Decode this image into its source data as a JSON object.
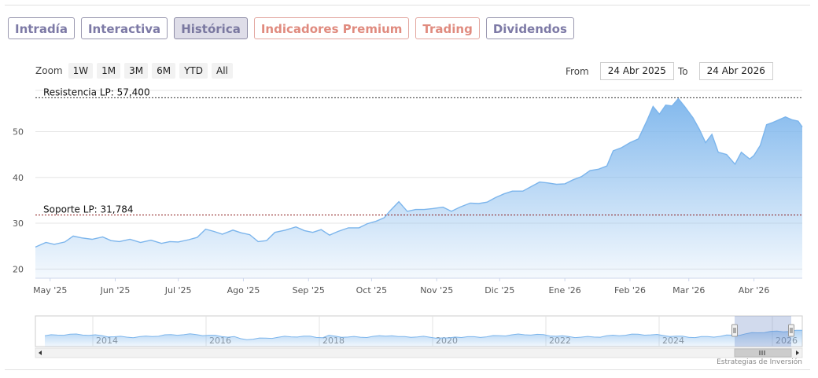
{
  "tabs": [
    {
      "label": "Intradía",
      "style": "normal"
    },
    {
      "label": "Interactiva",
      "style": "normal"
    },
    {
      "label": "Histórica",
      "style": "active"
    },
    {
      "label": "Indicadores Premium",
      "style": "premium"
    },
    {
      "label": "Trading",
      "style": "premium"
    },
    {
      "label": "Dividendos",
      "style": "normal"
    }
  ],
  "zoom": {
    "label": "Zoom",
    "buttons": [
      "1W",
      "1M",
      "3M",
      "6M",
      "YTD",
      "All"
    ]
  },
  "range": {
    "from_label": "From",
    "from_value": "24 Abr 2025",
    "to_label": "To",
    "to_value": "24 Abr 2026"
  },
  "credit": "Estrategias de Inversión",
  "colors": {
    "line": "#7cb5ec",
    "fill_top": "#7cb5ec",
    "level_line": "#8b1a1a",
    "accent": "#7d7aa6",
    "premium": "#e08b7f"
  },
  "chart_data": {
    "type": "area",
    "ylim": [
      18,
      59
    ],
    "yticks": [
      20,
      30,
      40,
      50
    ],
    "xlim": [
      "2025-04-24",
      "2026-04-24"
    ],
    "xticks": [
      {
        "label": "May '25",
        "date": "2025-05-01"
      },
      {
        "label": "Jun '25",
        "date": "2025-06-01"
      },
      {
        "label": "Jul '25",
        "date": "2025-07-01"
      },
      {
        "label": "Ago '25",
        "date": "2025-08-01"
      },
      {
        "label": "Sep '25",
        "date": "2025-09-01"
      },
      {
        "label": "Oct '25",
        "date": "2025-10-01"
      },
      {
        "label": "Nov '25",
        "date": "2025-11-01"
      },
      {
        "label": "Dic '25",
        "date": "2025-12-01"
      },
      {
        "label": "Ene '26",
        "date": "2026-01-01"
      },
      {
        "label": "Feb '26",
        "date": "2026-02-01"
      },
      {
        "label": "Mar '26",
        "date": "2026-03-01"
      },
      {
        "label": "Abr '26",
        "date": "2026-04-01"
      }
    ],
    "levels": [
      {
        "label": "Resistencia LP: 57,400",
        "value": 57.4
      },
      {
        "label": "Soporte LP: 31,784",
        "value": 31.784
      }
    ],
    "series": [
      {
        "points": [
          [
            "2025-04-24",
            24.8
          ],
          [
            "2025-04-29",
            25.8
          ],
          [
            "2025-05-03",
            25.4
          ],
          [
            "2025-05-08",
            25.9
          ],
          [
            "2025-05-12",
            27.2
          ],
          [
            "2025-05-16",
            26.8
          ],
          [
            "2025-05-21",
            26.5
          ],
          [
            "2025-05-26",
            27.0
          ],
          [
            "2025-05-30",
            26.2
          ],
          [
            "2025-06-03",
            26.0
          ],
          [
            "2025-06-08",
            26.5
          ],
          [
            "2025-06-13",
            25.8
          ],
          [
            "2025-06-18",
            26.3
          ],
          [
            "2025-06-23",
            25.6
          ],
          [
            "2025-06-27",
            26.0
          ],
          [
            "2025-07-01",
            25.9
          ],
          [
            "2025-07-06",
            26.4
          ],
          [
            "2025-07-10",
            26.9
          ],
          [
            "2025-07-14",
            28.7
          ],
          [
            "2025-07-18",
            28.2
          ],
          [
            "2025-07-22",
            27.6
          ],
          [
            "2025-07-27",
            28.5
          ],
          [
            "2025-07-31",
            27.9
          ],
          [
            "2025-08-04",
            27.5
          ],
          [
            "2025-08-08",
            26.0
          ],
          [
            "2025-08-12",
            26.2
          ],
          [
            "2025-08-16",
            28.0
          ],
          [
            "2025-08-21",
            28.5
          ],
          [
            "2025-08-26",
            29.2
          ],
          [
            "2025-08-30",
            28.4
          ],
          [
            "2025-09-03",
            28.0
          ],
          [
            "2025-09-07",
            28.6
          ],
          [
            "2025-09-11",
            27.4
          ],
          [
            "2025-09-15",
            28.2
          ],
          [
            "2025-09-20",
            29.0
          ],
          [
            "2025-09-25",
            29.0
          ],
          [
            "2025-09-29",
            29.9
          ],
          [
            "2025-10-03",
            30.4
          ],
          [
            "2025-10-07",
            31.2
          ],
          [
            "2025-10-10",
            32.8
          ],
          [
            "2025-10-14",
            34.7
          ],
          [
            "2025-10-18",
            32.6
          ],
          [
            "2025-10-22",
            33.0
          ],
          [
            "2025-10-26",
            33.0
          ],
          [
            "2025-10-30",
            33.2
          ],
          [
            "2025-11-04",
            33.5
          ],
          [
            "2025-11-08",
            32.6
          ],
          [
            "2025-11-12",
            33.5
          ],
          [
            "2025-11-17",
            34.4
          ],
          [
            "2025-11-21",
            34.3
          ],
          [
            "2025-11-25",
            34.6
          ],
          [
            "2025-11-29",
            35.6
          ],
          [
            "2025-12-03",
            36.4
          ],
          [
            "2025-12-07",
            37.0
          ],
          [
            "2025-12-12",
            37.0
          ],
          [
            "2025-12-16",
            38.0
          ],
          [
            "2025-12-20",
            39.0
          ],
          [
            "2025-12-24",
            38.8
          ],
          [
            "2025-12-28",
            38.5
          ],
          [
            "2026-01-01",
            38.6
          ],
          [
            "2026-01-05",
            39.5
          ],
          [
            "2026-01-09",
            40.2
          ],
          [
            "2026-01-13",
            41.5
          ],
          [
            "2026-01-17",
            41.8
          ],
          [
            "2026-01-21",
            42.5
          ],
          [
            "2026-01-24",
            45.8
          ],
          [
            "2026-01-28",
            46.5
          ],
          [
            "2026-02-01",
            47.6
          ],
          [
            "2026-02-05",
            48.4
          ],
          [
            "2026-02-09",
            52.3
          ],
          [
            "2026-02-12",
            55.5
          ],
          [
            "2026-02-15",
            53.8
          ],
          [
            "2026-02-18",
            55.8
          ],
          [
            "2026-02-21",
            55.6
          ],
          [
            "2026-02-24",
            57.2
          ],
          [
            "2026-02-27",
            55.5
          ],
          [
            "2026-03-03",
            53.0
          ],
          [
            "2026-03-06",
            50.5
          ],
          [
            "2026-03-09",
            47.6
          ],
          [
            "2026-03-12",
            49.4
          ],
          [
            "2026-03-15",
            45.5
          ],
          [
            "2026-03-19",
            45.0
          ],
          [
            "2026-03-23",
            42.9
          ],
          [
            "2026-03-26",
            45.5
          ],
          [
            "2026-03-30",
            44.0
          ],
          [
            "2026-04-01",
            44.8
          ],
          [
            "2026-04-04",
            47.0
          ],
          [
            "2026-04-07",
            51.5
          ],
          [
            "2026-04-10",
            52.0
          ],
          [
            "2026-04-13",
            52.6
          ],
          [
            "2026-04-16",
            53.2
          ],
          [
            "2026-04-19",
            52.6
          ],
          [
            "2026-04-22",
            52.3
          ],
          [
            "2026-04-24",
            51.0
          ]
        ]
      }
    ],
    "navigator": {
      "labels": [
        "2014",
        "2016",
        "2018",
        "2020",
        "2022",
        "2024",
        "2026"
      ]
    }
  }
}
